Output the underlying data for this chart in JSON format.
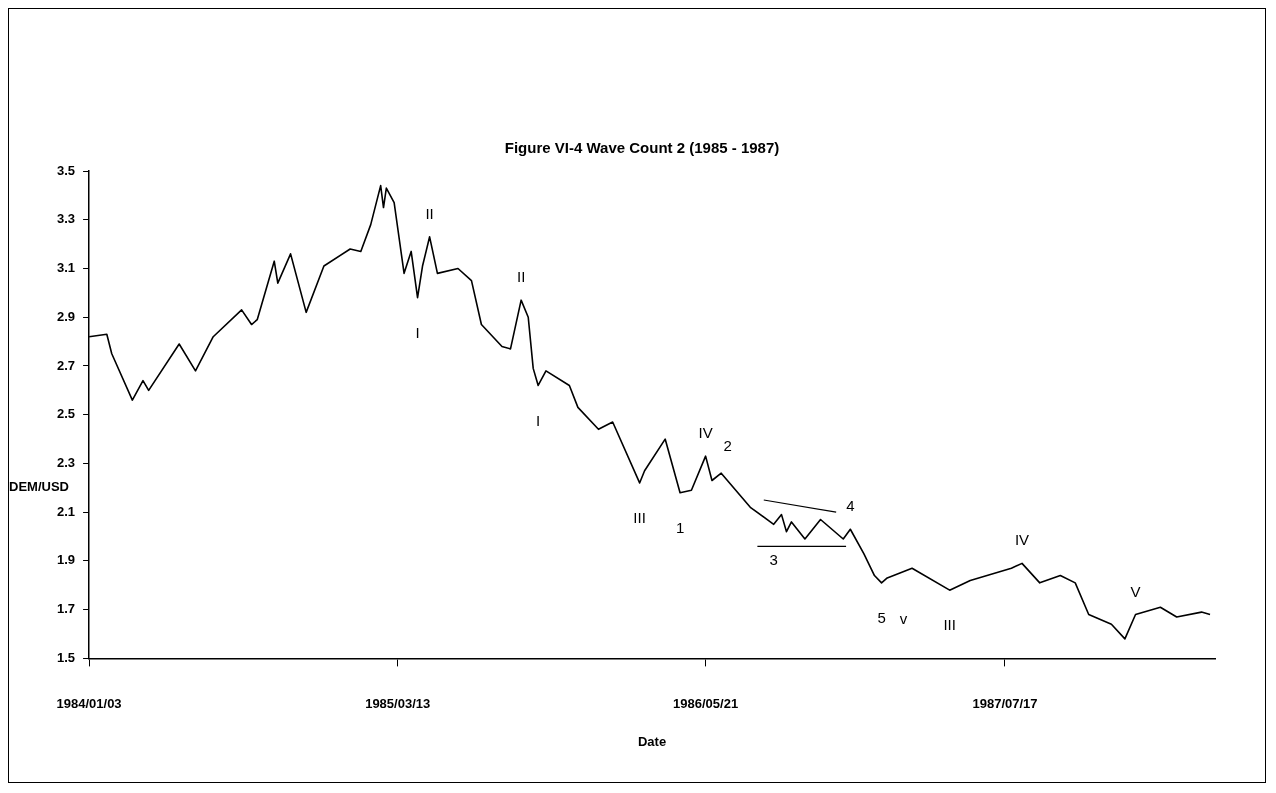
{
  "chart_data": {
    "type": "line",
    "title": "Figure VI-4 Wave Count 2 (1985 - 1987)",
    "xlabel": "Date",
    "ylabel": "DEM/USD",
    "xlim": [
      "1984-01-03",
      "1988-05-08"
    ],
    "xticks": [
      {
        "value": "1984-01-03",
        "label": "1984/01/03"
      },
      {
        "value": "1985-03-13",
        "label": "1985/03/13"
      },
      {
        "value": "1986-05-21",
        "label": "1986/05/21"
      },
      {
        "value": "1987-07-17",
        "label": "1987/07/17"
      }
    ],
    "ylim": [
      1.5,
      3.5
    ],
    "yticks": [
      1.5,
      1.7,
      1.9,
      2.1,
      2.3,
      2.5,
      2.7,
      2.9,
      3.1,
      3.3,
      3.5
    ],
    "marker": "none",
    "line_style": "solid",
    "series": [
      {
        "color": "#000000",
        "x": [
          "1984-01-03",
          "1984-01-28",
          "1984-02-04",
          "1984-03-04",
          "1984-03-19",
          "1984-03-27",
          "1984-05-09",
          "1984-06-01",
          "1984-06-26",
          "1984-08-05",
          "1984-08-19",
          "1984-08-27",
          "1984-09-20",
          "1984-09-25",
          "1984-10-13",
          "1984-11-04",
          "1984-11-29",
          "1985-01-05",
          "1985-01-20",
          "1985-02-03",
          "1985-02-17",
          "1985-02-21",
          "1985-02-25",
          "1985-03-08",
          "1985-03-22",
          "1985-04-01",
          "1985-04-10",
          "1985-04-17",
          "1985-04-27",
          "1985-05-08",
          "1985-06-06",
          "1985-06-25",
          "1985-07-09",
          "1985-08-07",
          "1985-08-19",
          "1985-09-03",
          "1985-09-13",
          "1985-09-20",
          "1985-09-27",
          "1985-10-08",
          "1985-11-10",
          "1985-11-22",
          "1985-12-21",
          "1986-01-10",
          "1986-02-17",
          "1986-02-24",
          "1986-03-25",
          "1986-04-15",
          "1986-05-01",
          "1986-05-21",
          "1986-05-30",
          "1986-06-12",
          "1986-07-23",
          "1986-08-25",
          "1986-09-05",
          "1986-09-12",
          "1986-09-19",
          "1986-10-08",
          "1986-10-30",
          "1986-12-01",
          "1986-12-11",
          "1986-12-30",
          "1987-01-14",
          "1987-01-24",
          "1987-02-01",
          "1987-03-08",
          "1987-04-30",
          "1987-05-29",
          "1987-07-26",
          "1987-08-10",
          "1987-09-04",
          "1987-10-03",
          "1987-10-24",
          "1987-11-12",
          "1987-12-14",
          "1988-01-02",
          "1988-01-17",
          "1988-02-21",
          "1988-03-15",
          "1988-04-19",
          "1988-05-01"
        ],
        "values": [
          2.82,
          2.83,
          2.75,
          2.56,
          2.64,
          2.6,
          2.79,
          2.68,
          2.82,
          2.93,
          2.87,
          2.89,
          3.13,
          3.04,
          3.16,
          2.92,
          3.11,
          3.18,
          3.17,
          3.28,
          3.44,
          3.35,
          3.43,
          3.37,
          3.08,
          3.17,
          2.98,
          3.11,
          3.23,
          3.08,
          3.1,
          3.05,
          2.87,
          2.78,
          2.77,
          2.97,
          2.9,
          2.69,
          2.62,
          2.68,
          2.62,
          2.53,
          2.44,
          2.47,
          2.22,
          2.27,
          2.4,
          2.18,
          2.19,
          2.33,
          2.23,
          2.26,
          2.12,
          2.05,
          2.09,
          2.02,
          2.06,
          1.99,
          2.07,
          1.99,
          2.03,
          1.93,
          1.84,
          1.81,
          1.83,
          1.87,
          1.78,
          1.82,
          1.87,
          1.89,
          1.81,
          1.84,
          1.81,
          1.68,
          1.64,
          1.58,
          1.68,
          1.71,
          1.67,
          1.69,
          1.68
        ]
      },
      {
        "type": "line",
        "color": "#000000",
        "x": [
          "1986-08-11",
          "1986-11-21"
        ],
        "values": [
          2.15,
          2.1
        ]
      },
      {
        "type": "line",
        "color": "#000000",
        "x": [
          "1986-08-02",
          "1986-12-05"
        ],
        "values": [
          1.96,
          1.96
        ]
      }
    ],
    "annotations": [
      {
        "text": "II",
        "x": "1985-04-27",
        "y": 3.23
      },
      {
        "text": "I",
        "x": "1985-04-10",
        "y": 2.98
      },
      {
        "text": "II",
        "x": "1985-09-03",
        "y": 2.97
      },
      {
        "text": "I",
        "x": "1985-09-27",
        "y": 2.62
      },
      {
        "text": "III",
        "x": "1986-02-17",
        "y": 2.22
      },
      {
        "text": "1",
        "x": "1986-04-15",
        "y": 2.18
      },
      {
        "text": "IV",
        "x": "1986-05-21",
        "y": 2.33
      },
      {
        "text": "2",
        "x": "1986-06-12",
        "y": 2.26
      },
      {
        "text": "3",
        "x": "1986-08-25",
        "y": 2.05
      },
      {
        "text": "4",
        "x": "1986-12-11",
        "y": 2.03
      },
      {
        "text": "5",
        "x": "1987-01-24",
        "y": 1.81
      },
      {
        "text": "v",
        "x": "1987-02-01",
        "y": 1.83
      },
      {
        "text": "III",
        "x": "1987-04-30",
        "y": 1.78
      },
      {
        "text": "IV",
        "x": "1987-08-10",
        "y": 1.89
      },
      {
        "text": "V",
        "x": "1988-01-17",
        "y": 1.68
      }
    ]
  }
}
